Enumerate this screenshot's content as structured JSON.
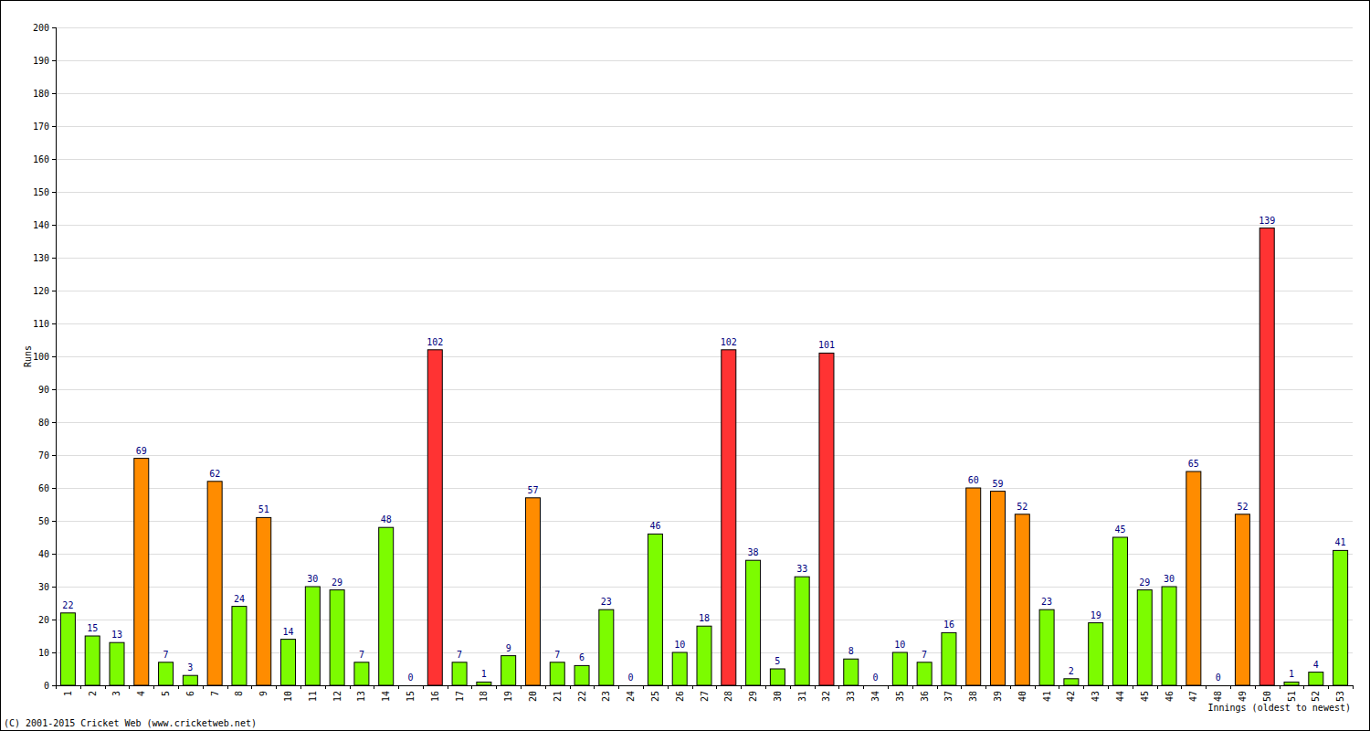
{
  "chart_data": {
    "type": "bar",
    "y_label": "Runs",
    "x_label": "Innings (oldest to newest)",
    "annotations": [
      "(C) 2001-2015 Cricket Web (www.cricketweb.net)"
    ],
    "categories": [
      "1",
      "2",
      "3",
      "4",
      "5",
      "6",
      "7",
      "8",
      "9",
      "10",
      "11",
      "12",
      "13",
      "14",
      "15",
      "16",
      "17",
      "18",
      "19",
      "20",
      "21",
      "22",
      "23",
      "24",
      "25",
      "26",
      "27",
      "28",
      "29",
      "30",
      "31",
      "32",
      "33",
      "34",
      "35",
      "36",
      "37",
      "38",
      "39",
      "40",
      "41",
      "42",
      "43",
      "44",
      "45",
      "46",
      "47",
      "48",
      "49",
      "50",
      "51",
      "52",
      "53"
    ],
    "values": [
      22,
      15,
      13,
      69,
      7,
      3,
      62,
      24,
      51,
      14,
      30,
      29,
      7,
      48,
      0,
      102,
      7,
      1,
      9,
      57,
      7,
      6,
      23,
      0,
      46,
      10,
      18,
      102,
      38,
      5,
      33,
      101,
      8,
      0,
      10,
      7,
      16,
      60,
      59,
      52,
      23,
      2,
      19,
      45,
      29,
      30,
      65,
      0,
      52,
      139,
      1,
      4,
      41
    ],
    "colors": [
      "#7cfc00",
      "#7cfc00",
      "#7cfc00",
      "#ff8c00",
      "#7cfc00",
      "#7cfc00",
      "#ff8c00",
      "#7cfc00",
      "#ff8c00",
      "#7cfc00",
      "#7cfc00",
      "#7cfc00",
      "#7cfc00",
      "#7cfc00",
      "#7cfc00",
      "#ff3333",
      "#7cfc00",
      "#7cfc00",
      "#7cfc00",
      "#ff8c00",
      "#7cfc00",
      "#7cfc00",
      "#7cfc00",
      "#7cfc00",
      "#7cfc00",
      "#7cfc00",
      "#7cfc00",
      "#ff3333",
      "#7cfc00",
      "#7cfc00",
      "#7cfc00",
      "#ff3333",
      "#7cfc00",
      "#7cfc00",
      "#7cfc00",
      "#7cfc00",
      "#7cfc00",
      "#ff8c00",
      "#ff8c00",
      "#ff8c00",
      "#7cfc00",
      "#7cfc00",
      "#7cfc00",
      "#7cfc00",
      "#7cfc00",
      "#7cfc00",
      "#ff8c00",
      "#7cfc00",
      "#ff8c00",
      "#ff3333",
      "#7cfc00",
      "#7cfc00",
      "#7cfc00"
    ],
    "ylim": [
      0,
      200
    ],
    "yticks": [
      0,
      10,
      20,
      30,
      40,
      50,
      60,
      70,
      80,
      90,
      100,
      110,
      120,
      130,
      140,
      150,
      160,
      170,
      180,
      190,
      200
    ],
    "grid": true,
    "data_labels": true
  }
}
